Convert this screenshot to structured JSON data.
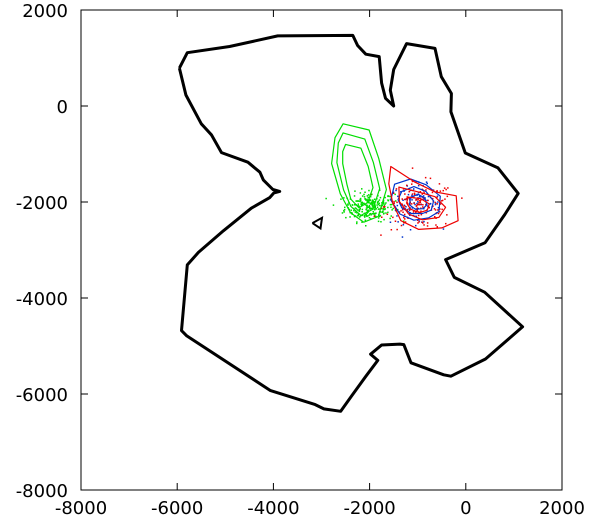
{
  "chart_data": {
    "type": "scatter",
    "xlim": [
      -8000,
      2000
    ],
    "ylim": [
      -8000,
      2000
    ],
    "xticks": [
      "-8000",
      "-6000",
      "-4000",
      "-2000",
      "0",
      "2000"
    ],
    "yticks": [
      "2000",
      "0",
      "-2000",
      "-4000",
      "-6000",
      "-8000"
    ],
    "xtick_values": [
      -8000,
      -6000,
      -4000,
      -2000,
      0,
      2000
    ],
    "ytick_values": [
      2000,
      0,
      -2000,
      -4000,
      -6000,
      -8000
    ],
    "grid": false,
    "colors": {
      "boundary": "#000000",
      "green": "#00dd00",
      "blue": "#0033cc",
      "red": "#ee0000"
    },
    "outline": [
      [
        -5955,
        790
      ],
      [
        -5790,
        1110
      ],
      [
        -4910,
        1240
      ],
      [
        -3910,
        1460
      ],
      [
        -2350,
        1470
      ],
      [
        -2250,
        1260
      ],
      [
        -2080,
        1080
      ],
      [
        -1800,
        1030
      ],
      [
        -1750,
        480
      ],
      [
        -1670,
        160
      ],
      [
        -1500,
        0
      ],
      [
        -1570,
        330
      ],
      [
        -1500,
        760
      ],
      [
        -1230,
        1300
      ],
      [
        -640,
        1200
      ],
      [
        -510,
        610
      ],
      [
        -300,
        260
      ],
      [
        -310,
        -120
      ],
      [
        -10,
        -980
      ],
      [
        670,
        -1290
      ],
      [
        1090,
        -1820
      ],
      [
        810,
        -2260
      ],
      [
        400,
        -2850
      ],
      [
        -420,
        -3200
      ],
      [
        -240,
        -3570
      ],
      [
        390,
        -3880
      ],
      [
        1180,
        -4600
      ],
      [
        410,
        -5270
      ],
      [
        -310,
        -5630
      ],
      [
        -460,
        -5600
      ],
      [
        -1140,
        -5350
      ],
      [
        -1290,
        -4970
      ],
      [
        -1370,
        -4960
      ],
      [
        -1750,
        -4980
      ],
      [
        -1980,
        -5170
      ],
      [
        -1830,
        -5300
      ],
      [
        -2070,
        -5620
      ],
      [
        -2380,
        -6050
      ],
      [
        -2600,
        -6360
      ],
      [
        -2950,
        -6310
      ],
      [
        -3130,
        -6220
      ],
      [
        -4060,
        -5930
      ],
      [
        -5800,
        -4790
      ],
      [
        -5910,
        -4680
      ],
      [
        -5790,
        -3310
      ],
      [
        -5560,
        -3050
      ],
      [
        -5040,
        -2600
      ],
      [
        -4460,
        -2130
      ],
      [
        -4080,
        -1910
      ],
      [
        -3990,
        -1810
      ],
      [
        -3870,
        -1780
      ],
      [
        -4010,
        -1740
      ],
      [
        -4210,
        -1540
      ],
      [
        -4280,
        -1380
      ],
      [
        -4530,
        -1170
      ],
      [
        -5080,
        -970
      ],
      [
        -5290,
        -600
      ],
      [
        -5500,
        -370
      ],
      [
        -5820,
        230
      ],
      [
        -5955,
        790
      ]
    ],
    "small_feature": [
      [
        -3190,
        -2440
      ],
      [
        -3020,
        -2550
      ],
      [
        -2990,
        -2330
      ],
      [
        -3190,
        -2440
      ]
    ],
    "green_contours": [
      [
        [
          -2550,
          -370
        ],
        [
          -2010,
          -500
        ],
        [
          -1810,
          -1090
        ],
        [
          -1650,
          -1740
        ],
        [
          -1820,
          -2300
        ],
        [
          -2120,
          -2420
        ],
        [
          -2400,
          -2220
        ],
        [
          -2610,
          -1830
        ],
        [
          -2790,
          -1200
        ],
        [
          -2720,
          -660
        ],
        [
          -2550,
          -370
        ]
      ],
      [
        [
          -2550,
          -560
        ],
        [
          -2100,
          -690
        ],
        [
          -1920,
          -1180
        ],
        [
          -1790,
          -1720
        ],
        [
          -1930,
          -2150
        ],
        [
          -2180,
          -2280
        ],
        [
          -2390,
          -2090
        ],
        [
          -2540,
          -1750
        ],
        [
          -2680,
          -1180
        ],
        [
          -2650,
          -770
        ],
        [
          -2550,
          -560
        ]
      ],
      [
        [
          -2500,
          -800
        ],
        [
          -2180,
          -880
        ],
        [
          -2030,
          -1260
        ],
        [
          -1930,
          -1700
        ],
        [
          -2040,
          -2010
        ],
        [
          -2220,
          -2120
        ],
        [
          -2390,
          -1940
        ],
        [
          -2470,
          -1640
        ],
        [
          -2560,
          -1200
        ],
        [
          -2560,
          -950
        ],
        [
          -2500,
          -800
        ]
      ]
    ],
    "blue_contours": [
      [
        [
          -1480,
          -1630
        ],
        [
          -1150,
          -1520
        ],
        [
          -830,
          -1640
        ],
        [
          -530,
          -1880
        ],
        [
          -560,
          -2200
        ],
        [
          -770,
          -2330
        ],
        [
          -1080,
          -2380
        ],
        [
          -1370,
          -2250
        ],
        [
          -1560,
          -1960
        ],
        [
          -1480,
          -1630
        ]
      ],
      [
        [
          -1330,
          -1780
        ],
        [
          -1080,
          -1680
        ],
        [
          -830,
          -1780
        ],
        [
          -670,
          -1980
        ],
        [
          -720,
          -2170
        ],
        [
          -900,
          -2240
        ],
        [
          -1130,
          -2240
        ],
        [
          -1330,
          -2120
        ],
        [
          -1410,
          -1950
        ],
        [
          -1330,
          -1780
        ]
      ],
      [
        [
          -1150,
          -1900
        ],
        [
          -990,
          -1840
        ],
        [
          -850,
          -1920
        ],
        [
          -810,
          -2060
        ],
        [
          -890,
          -2140
        ],
        [
          -1050,
          -2150
        ],
        [
          -1170,
          -2060
        ],
        [
          -1150,
          -1900
        ]
      ]
    ],
    "red_contours": [
      [
        [
          -1560,
          -1260
        ],
        [
          -1070,
          -1580
        ],
        [
          -640,
          -1790
        ],
        [
          -200,
          -1870
        ],
        [
          -160,
          -2390
        ],
        [
          -500,
          -2540
        ],
        [
          -980,
          -2570
        ],
        [
          -1350,
          -2390
        ],
        [
          -1520,
          -2020
        ],
        [
          -1600,
          -1620
        ],
        [
          -1560,
          -1260
        ]
      ],
      [
        [
          -1390,
          -1690
        ],
        [
          -990,
          -1790
        ],
        [
          -640,
          -1890
        ],
        [
          -420,
          -2110
        ],
        [
          -560,
          -2320
        ],
        [
          -900,
          -2370
        ],
        [
          -1190,
          -2250
        ],
        [
          -1380,
          -1990
        ],
        [
          -1390,
          -1690
        ]
      ],
      [
        [
          -1200,
          -1900
        ],
        [
          -940,
          -1930
        ],
        [
          -760,
          -2040
        ],
        [
          -800,
          -2170
        ],
        [
          -960,
          -2220
        ],
        [
          -1150,
          -2150
        ],
        [
          -1230,
          -2020
        ],
        [
          -1200,
          -1900
        ]
      ]
    ],
    "green_points": {
      "cx": -2000,
      "cy": -2100,
      "sx": 260,
      "sy": 150,
      "n": 260
    },
    "blue_points": {
      "cx": -1050,
      "cy": -2050,
      "sx": 260,
      "sy": 200,
      "n": 90
    },
    "red_points": {
      "cx": -950,
      "cy": -2080,
      "sx": 360,
      "sy": 240,
      "n": 160
    }
  }
}
